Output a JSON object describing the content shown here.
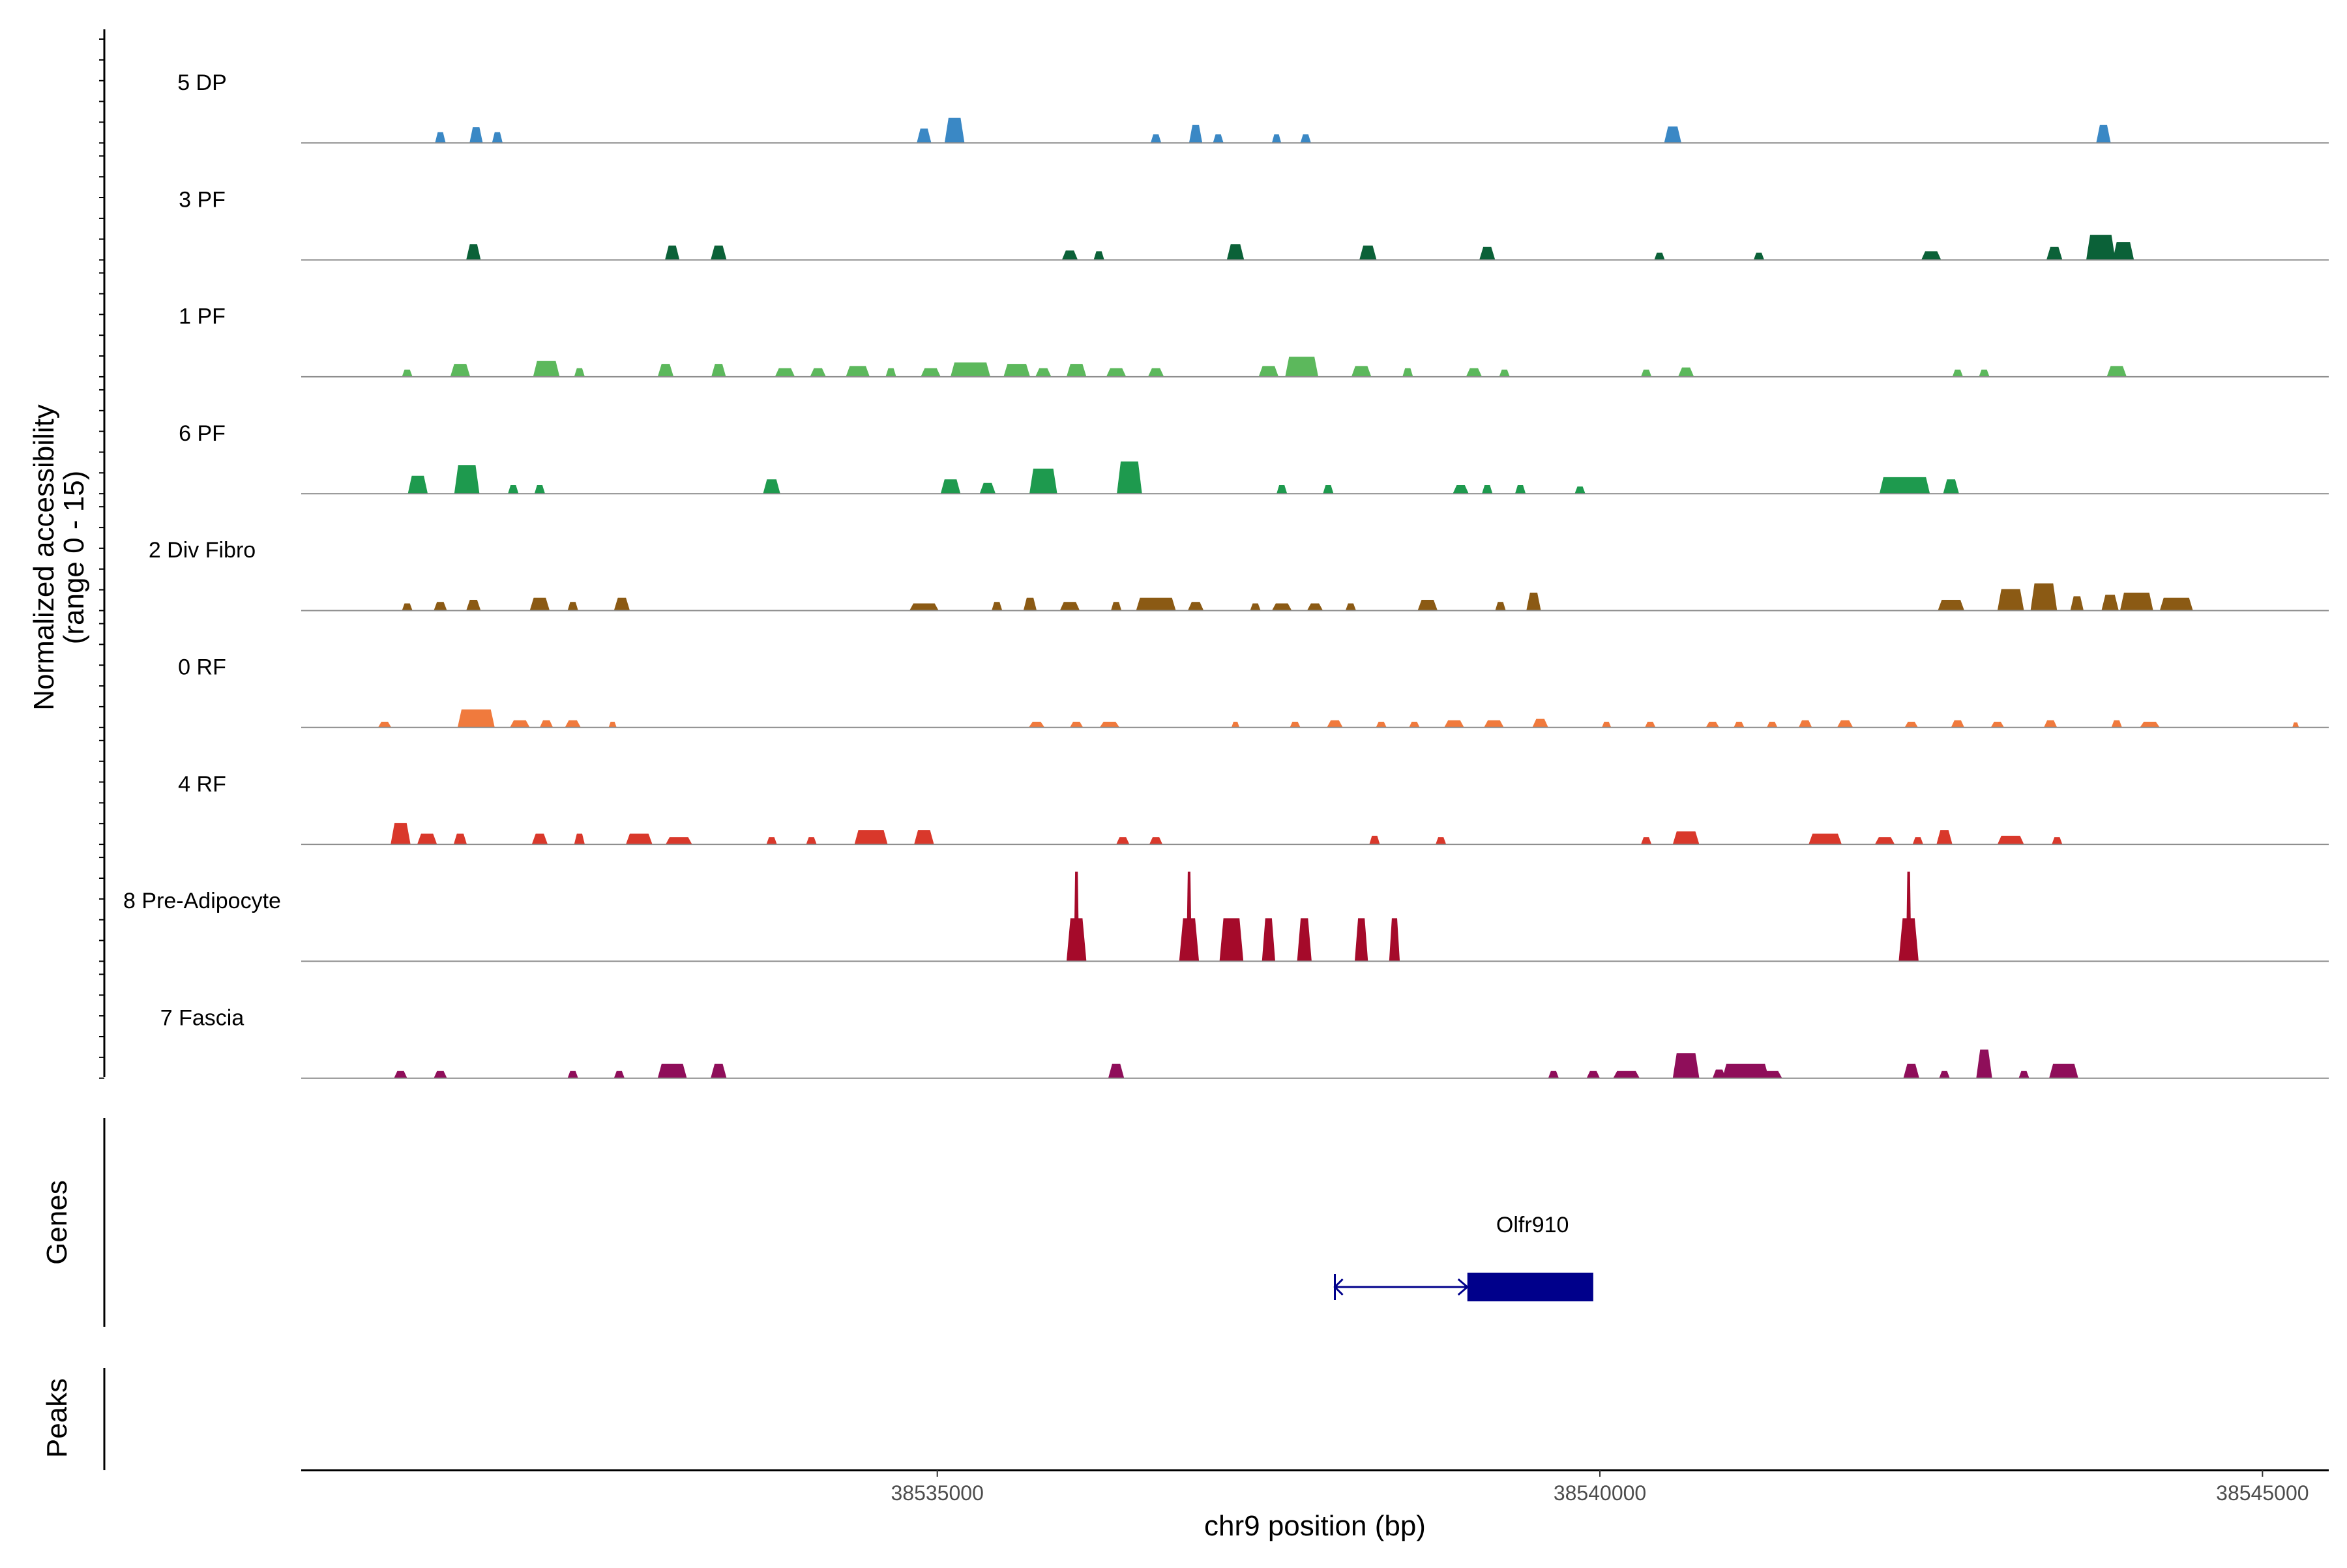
{
  "chart_data": {
    "type": "area",
    "title": "",
    "xlabel": "chr9 position (bp)",
    "ylabel": "Normalized accessibility\n(range 0 - 15)",
    "ylabel_lines": [
      "Normalized accessibility",
      "(range 0 - 15)"
    ],
    "ylim": [
      0,
      15
    ],
    "xlim": [
      38530200,
      38545500
    ],
    "x_ticks": [
      38535000,
      38540000,
      38545000
    ],
    "x_tick_labels": [
      "38535000",
      "38540000",
      "38545000"
    ],
    "panel_labels": {
      "genes": "Genes",
      "peaks": "Peaks"
    },
    "series": [
      {
        "name": "5 DP",
        "color": "#3A88C5",
        "peaks": [
          [
            38531250,
            80,
            1.5
          ],
          [
            38531520,
            100,
            2.2
          ],
          [
            38531680,
            80,
            1.5
          ],
          [
            38534900,
            110,
            2.0
          ],
          [
            38535130,
            150,
            3.5
          ],
          [
            38536650,
            80,
            1.2
          ],
          [
            38536950,
            100,
            2.5
          ],
          [
            38537120,
            80,
            1.2
          ],
          [
            38537560,
            70,
            1.2
          ],
          [
            38537780,
            80,
            1.2
          ],
          [
            38540550,
            130,
            2.3
          ],
          [
            38543800,
            110,
            2.5
          ]
        ]
      },
      {
        "name": "3 PF",
        "color": "#0B6138",
        "peaks": [
          [
            38531500,
            110,
            2.2
          ],
          [
            38533000,
            110,
            2.0
          ],
          [
            38533350,
            120,
            2.0
          ],
          [
            38536000,
            120,
            1.3
          ],
          [
            38536220,
            80,
            1.2
          ],
          [
            38537250,
            130,
            2.2
          ],
          [
            38538250,
            130,
            2.0
          ],
          [
            38539150,
            120,
            1.8
          ],
          [
            38540450,
            80,
            1.0
          ],
          [
            38541200,
            80,
            1.0
          ],
          [
            38542500,
            150,
            1.2
          ],
          [
            38543430,
            120,
            1.8
          ],
          [
            38543780,
            220,
            3.5
          ],
          [
            38543950,
            160,
            2.5
          ]
        ]
      },
      {
        "name": "1 PF",
        "color": "#5CB85C",
        "peaks": [
          [
            38531000,
            80,
            1.0
          ],
          [
            38531400,
            150,
            1.8
          ],
          [
            38532050,
            200,
            2.2
          ],
          [
            38532300,
            80,
            1.2
          ],
          [
            38532950,
            120,
            1.8
          ],
          [
            38533350,
            110,
            1.8
          ],
          [
            38533850,
            150,
            1.2
          ],
          [
            38534100,
            120,
            1.2
          ],
          [
            38534400,
            180,
            1.5
          ],
          [
            38534650,
            80,
            1.2
          ],
          [
            38534950,
            150,
            1.2
          ],
          [
            38535250,
            300,
            2.0
          ],
          [
            38535600,
            200,
            1.8
          ],
          [
            38535800,
            120,
            1.2
          ],
          [
            38536050,
            150,
            1.8
          ],
          [
            38536350,
            150,
            1.2
          ],
          [
            38536650,
            120,
            1.2
          ],
          [
            38537500,
            150,
            1.5
          ],
          [
            38537750,
            250,
            2.8
          ],
          [
            38538200,
            150,
            1.5
          ],
          [
            38538550,
            80,
            1.2
          ],
          [
            38539050,
            120,
            1.2
          ],
          [
            38539280,
            80,
            1.0
          ],
          [
            38540350,
            80,
            1.0
          ],
          [
            38540650,
            120,
            1.3
          ],
          [
            38542700,
            80,
            1.0
          ],
          [
            38542900,
            80,
            1.0
          ],
          [
            38543900,
            150,
            1.5
          ]
        ]
      },
      {
        "name": "6 PF",
        "color": "#1E9A4E",
        "peaks": [
          [
            38531080,
            150,
            2.5
          ],
          [
            38531450,
            190,
            4.0
          ],
          [
            38531800,
            80,
            1.2
          ],
          [
            38532000,
            80,
            1.2
          ],
          [
            38533750,
            130,
            2.0
          ],
          [
            38535100,
            150,
            2.0
          ],
          [
            38535380,
            120,
            1.5
          ],
          [
            38535800,
            210,
            3.5
          ],
          [
            38536450,
            190,
            4.5
          ],
          [
            38537600,
            80,
            1.2
          ],
          [
            38537950,
            80,
            1.2
          ],
          [
            38538950,
            120,
            1.2
          ],
          [
            38539150,
            80,
            1.2
          ],
          [
            38539400,
            80,
            1.2
          ],
          [
            38539850,
            80,
            1.0
          ],
          [
            38542300,
            380,
            2.3
          ],
          [
            38542650,
            120,
            2.0
          ]
        ]
      },
      {
        "name": "2 Div Fibro",
        "color": "#8B5A14",
        "peaks": [
          [
            38531000,
            80,
            1.0
          ],
          [
            38531250,
            100,
            1.2
          ],
          [
            38531500,
            110,
            1.5
          ],
          [
            38532000,
            150,
            1.8
          ],
          [
            38532250,
            80,
            1.2
          ],
          [
            38532620,
            120,
            1.8
          ],
          [
            38534900,
            220,
            1.0
          ],
          [
            38535450,
            80,
            1.2
          ],
          [
            38535700,
            100,
            1.8
          ],
          [
            38536000,
            150,
            1.2
          ],
          [
            38536350,
            80,
            1.2
          ],
          [
            38536650,
            300,
            1.8
          ],
          [
            38536950,
            120,
            1.2
          ],
          [
            38537400,
            80,
            1.0
          ],
          [
            38537600,
            150,
            1.0
          ],
          [
            38537850,
            120,
            1.0
          ],
          [
            38538120,
            80,
            1.0
          ],
          [
            38538700,
            150,
            1.5
          ],
          [
            38539250,
            80,
            1.2
          ],
          [
            38539500,
            110,
            2.5
          ],
          [
            38542650,
            200,
            1.5
          ],
          [
            38543100,
            200,
            3.0
          ],
          [
            38543350,
            200,
            3.8
          ],
          [
            38543600,
            100,
            2.0
          ],
          [
            38543850,
            130,
            2.2
          ],
          [
            38544050,
            250,
            2.5
          ],
          [
            38544350,
            250,
            1.8
          ]
        ]
      },
      {
        "name": "0 RF",
        "color": "#F07A3D",
        "peaks": [
          [
            38530830,
            100,
            0.8
          ],
          [
            38531520,
            280,
            2.5
          ],
          [
            38531850,
            150,
            1.0
          ],
          [
            38532050,
            100,
            1.0
          ],
          [
            38532250,
            120,
            1.0
          ],
          [
            38532550,
            60,
            0.8
          ],
          [
            38535750,
            120,
            0.8
          ],
          [
            38536050,
            100,
            0.8
          ],
          [
            38536300,
            150,
            0.8
          ],
          [
            38537250,
            60,
            0.8
          ],
          [
            38537700,
            80,
            0.8
          ],
          [
            38538000,
            120,
            1.0
          ],
          [
            38538350,
            80,
            0.8
          ],
          [
            38538600,
            80,
            0.8
          ],
          [
            38538900,
            150,
            1.0
          ],
          [
            38539200,
            150,
            1.0
          ],
          [
            38539550,
            120,
            1.2
          ],
          [
            38540050,
            70,
            0.8
          ],
          [
            38540380,
            80,
            0.8
          ],
          [
            38540850,
            100,
            0.8
          ],
          [
            38541050,
            80,
            0.8
          ],
          [
            38541300,
            80,
            0.8
          ],
          [
            38541550,
            100,
            1.0
          ],
          [
            38541850,
            120,
            1.0
          ],
          [
            38542350,
            100,
            0.8
          ],
          [
            38542700,
            100,
            1.0
          ],
          [
            38543000,
            100,
            0.8
          ],
          [
            38543400,
            100,
            1.0
          ],
          [
            38543900,
            80,
            1.0
          ],
          [
            38544150,
            150,
            0.8
          ],
          [
            38545250,
            50,
            0.7
          ]
        ]
      },
      {
        "name": "4 RF",
        "color": "#D9382B",
        "peaks": [
          [
            38530950,
            150,
            3.0
          ],
          [
            38531150,
            150,
            1.5
          ],
          [
            38531400,
            100,
            1.5
          ],
          [
            38532000,
            120,
            1.5
          ],
          [
            38532300,
            80,
            1.5
          ],
          [
            38532750,
            200,
            1.5
          ],
          [
            38533050,
            200,
            1.0
          ],
          [
            38533750,
            80,
            1.0
          ],
          [
            38534050,
            80,
            1.0
          ],
          [
            38534500,
            250,
            2.0
          ],
          [
            38534900,
            150,
            2.0
          ],
          [
            38536400,
            100,
            1.0
          ],
          [
            38536650,
            100,
            1.0
          ],
          [
            38538300,
            80,
            1.2
          ],
          [
            38538800,
            80,
            1.0
          ],
          [
            38540350,
            80,
            1.0
          ],
          [
            38540650,
            200,
            1.8
          ],
          [
            38541700,
            250,
            1.5
          ],
          [
            38542150,
            150,
            1.0
          ],
          [
            38542400,
            80,
            1.0
          ],
          [
            38542600,
            120,
            2.0
          ],
          [
            38543100,
            200,
            1.2
          ],
          [
            38543450,
            80,
            1.0
          ]
        ]
      },
      {
        "name": "8 Pre-Adipocyte",
        "color": "#A50A2A",
        "peaks": [
          [
            38536050,
            150,
            6.0
          ],
          [
            38536050,
            40,
            12.5
          ],
          [
            38536900,
            150,
            6.0
          ],
          [
            38536900,
            40,
            12.5
          ],
          [
            38537220,
            180,
            6.0
          ],
          [
            38537500,
            100,
            6.0
          ],
          [
            38537770,
            110,
            6.0
          ],
          [
            38538200,
            100,
            6.0
          ],
          [
            38538450,
            80,
            6.0
          ],
          [
            38542330,
            150,
            6.0
          ],
          [
            38542330,
            40,
            12.5
          ]
        ]
      },
      {
        "name": "7 Fascia",
        "color": "#8F0E5A",
        "peaks": [
          [
            38530950,
            100,
            1.0
          ],
          [
            38531250,
            100,
            1.0
          ],
          [
            38532250,
            80,
            1.0
          ],
          [
            38532600,
            80,
            1.0
          ],
          [
            38533000,
            220,
            2.0
          ],
          [
            38533350,
            120,
            2.0
          ],
          [
            38536350,
            120,
            2.0
          ],
          [
            38539650,
            80,
            1.0
          ],
          [
            38539950,
            100,
            1.0
          ],
          [
            38540200,
            200,
            1.0
          ],
          [
            38540650,
            200,
            3.5
          ],
          [
            38540900,
            100,
            1.2
          ],
          [
            38541100,
            350,
            2.0
          ],
          [
            38541300,
            150,
            1.0
          ],
          [
            38542350,
            120,
            2.0
          ],
          [
            38542600,
            80,
            1.0
          ],
          [
            38542900,
            120,
            4.0
          ],
          [
            38543200,
            80,
            1.0
          ],
          [
            38543500,
            220,
            2.0
          ]
        ]
      }
    ],
    "genes": [
      {
        "name": "Olfr910",
        "start": 38538000,
        "end": 38539950,
        "cds_start": 38539000,
        "cds_end": 38539950,
        "strand": "+",
        "color": "#00008B"
      }
    ],
    "peaks_track": []
  }
}
